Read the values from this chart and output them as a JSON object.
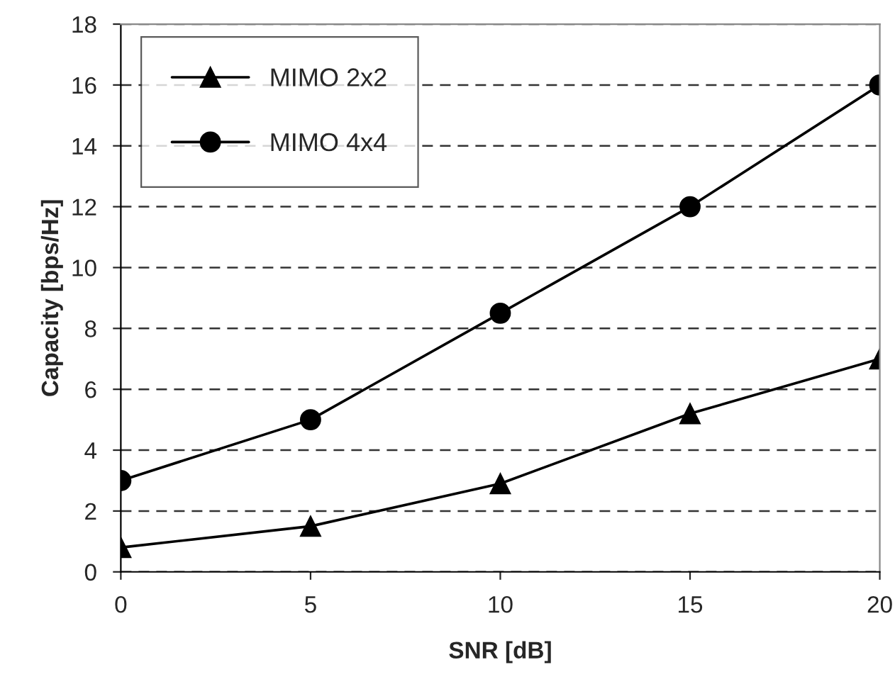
{
  "chart_data": {
    "type": "line",
    "xlabel": "SNR [dB]",
    "ylabel": "Capacity [bps/Hz]",
    "x": [
      0,
      5,
      10,
      15,
      20
    ],
    "series": [
      {
        "name": "MIMO 2x2",
        "color": "#000000",
        "marker": "triangle",
        "values": [
          0.8,
          1.5,
          2.9,
          5.2,
          7.0
        ]
      },
      {
        "name": "MIMO 4x4",
        "color": "#000000",
        "marker": "circle",
        "values": [
          3.0,
          5.0,
          8.5,
          12.0,
          16.0
        ]
      }
    ],
    "xlim": [
      0,
      20
    ],
    "xticks": [
      0,
      5,
      10,
      15,
      20
    ],
    "ylim": [
      0,
      18
    ],
    "yticks": [
      0,
      2,
      4,
      6,
      8,
      10,
      12,
      14,
      16,
      18
    ],
    "grid": "y",
    "legend": "top left",
    "line_style": "solid"
  }
}
